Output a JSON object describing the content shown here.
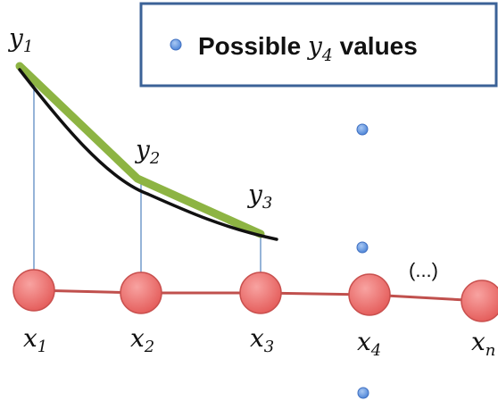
{
  "legend": {
    "prefix": "Possible ",
    "var": "y",
    "sub": "4",
    "suffix": " values"
  },
  "y_labels": [
    {
      "var": "y",
      "sub": "1"
    },
    {
      "var": "y",
      "sub": "2"
    },
    {
      "var": "y",
      "sub": "3"
    }
  ],
  "x_labels": [
    {
      "var": "x",
      "sub": "1"
    },
    {
      "var": "x",
      "sub": "2"
    },
    {
      "var": "x",
      "sub": "3"
    },
    {
      "var": "x",
      "sub": "4"
    },
    {
      "var": "x",
      "sub": "n"
    }
  ],
  "ellipsis": "(...)",
  "colors": {
    "node_fill": "#ee7472",
    "node_stroke": "#c9504e",
    "chain_line": "#c0504d",
    "green_curve": "#8db443",
    "black_curve": "#111111",
    "vertical_line": "#4f81bd",
    "legend_border": "#3b6297",
    "dot_fill": "#6f9ee3",
    "dot_stroke": "#3f6fc0"
  },
  "icons": {
    "node": "circle",
    "legend_marker": "dot"
  }
}
